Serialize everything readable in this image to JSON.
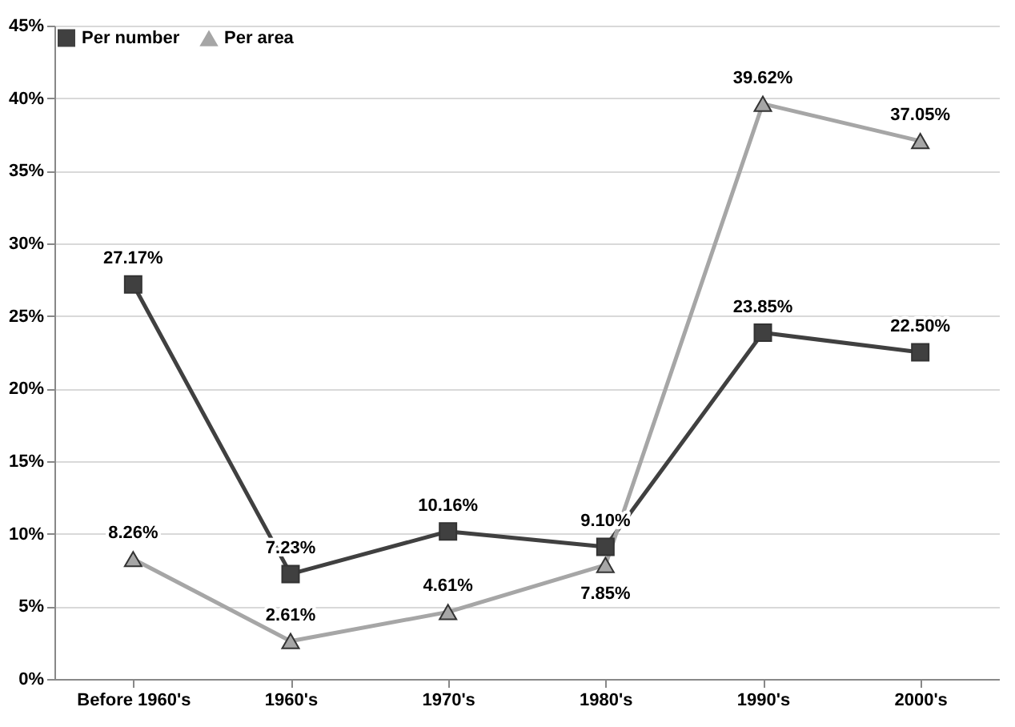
{
  "chart_data": {
    "type": "line",
    "categories": [
      "Before 1960's",
      "1960's",
      "1970's",
      "1980's",
      "1990's",
      "2000's"
    ],
    "series": [
      {
        "name": "Per number",
        "color": "#404040",
        "marker": "square",
        "values": [
          27.17,
          7.23,
          10.16,
          9.1,
          23.85,
          22.5
        ],
        "value_labels": [
          "27.17%",
          "7.23%",
          "10.16%",
          "9.10%",
          "23.85%",
          "22.50%"
        ]
      },
      {
        "name": "Per area",
        "color": "#a6a6a6",
        "marker": "triangle",
        "values": [
          8.26,
          2.61,
          4.61,
          7.85,
          39.62,
          37.05
        ],
        "value_labels": [
          "8.26%",
          "2.61%",
          "4.61%",
          "7.85%",
          "39.62%",
          "37.05%"
        ]
      }
    ],
    "ylim": [
      0,
      45
    ],
    "yticks": [
      {
        "value": 0,
        "label": "0%"
      },
      {
        "value": 5,
        "label": "5%"
      },
      {
        "value": 10,
        "label": "10%"
      },
      {
        "value": 15,
        "label": "15%"
      },
      {
        "value": 20,
        "label": "20%"
      },
      {
        "value": 25,
        "label": "25%"
      },
      {
        "value": 30,
        "label": "30%"
      },
      {
        "value": 35,
        "label": "35%"
      },
      {
        "value": 40,
        "label": "40%"
      },
      {
        "value": 45,
        "label": "45%"
      }
    ],
    "grid": "y",
    "legend": "top left",
    "line_style": "solid"
  }
}
